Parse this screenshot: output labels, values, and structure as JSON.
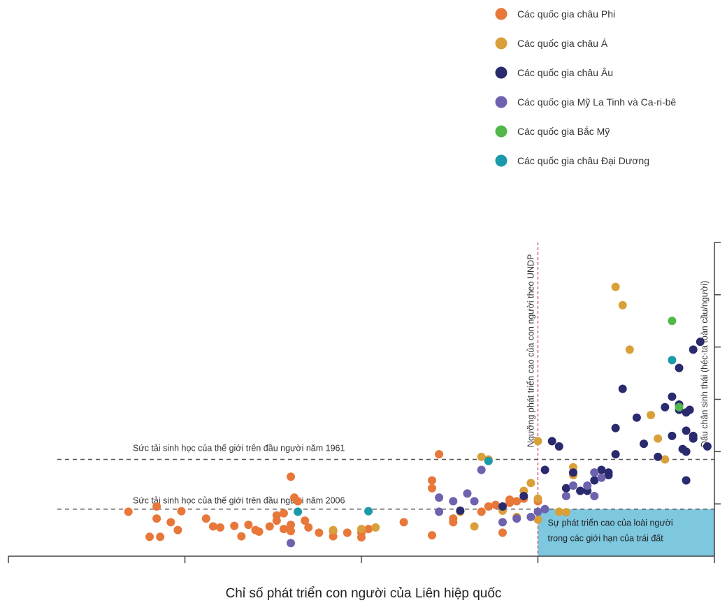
{
  "chart_data": {
    "type": "scatter",
    "title": "",
    "xlabel": "Chỉ số phát triển con người của Liên hiệp quốc",
    "ylabel": "Dấu chân sinh thái (héc-ta toàn cầu/người)",
    "xlim": [
      0,
      1
    ],
    "ylim": [
      0,
      6
    ],
    "legend_position": "top-right",
    "grid": false,
    "reference_lines": {
      "hdi_threshold": {
        "x": 0.75,
        "label": "Ngưỡng phát triển cao của con người theo UNDP"
      },
      "biocapacity_1961": {
        "y": 1.85,
        "label": "Sức tải sinh học của thế giới trên đầu người năm 1961"
      },
      "biocapacity_2006": {
        "y": 0.9,
        "label": "Sức tải sinh học của thế giới trên đầu người năm 2006"
      }
    },
    "sustainable_zone": {
      "x": [
        0.75,
        1.0
      ],
      "y": [
        0,
        0.9
      ],
      "label_line1": "Sự phát triển cao của loài người",
      "label_line2": "trong các giới hạn của trái đất"
    },
    "series": [
      {
        "name": "Các quốc gia châu Phi",
        "color": "#e8773a",
        "points": [
          [
            0.17,
            0.85
          ],
          [
            0.2,
            0.37
          ],
          [
            0.21,
            0.95
          ],
          [
            0.21,
            0.72
          ],
          [
            0.215,
            0.37
          ],
          [
            0.23,
            0.65
          ],
          [
            0.24,
            0.5
          ],
          [
            0.245,
            0.86
          ],
          [
            0.28,
            0.72
          ],
          [
            0.29,
            0.57
          ],
          [
            0.3,
            0.55
          ],
          [
            0.32,
            0.58
          ],
          [
            0.33,
            0.38
          ],
          [
            0.34,
            0.6
          ],
          [
            0.35,
            0.5
          ],
          [
            0.355,
            0.47
          ],
          [
            0.37,
            0.57
          ],
          [
            0.38,
            0.78
          ],
          [
            0.38,
            0.68
          ],
          [
            0.39,
            0.82
          ],
          [
            0.39,
            0.52
          ],
          [
            0.4,
            0.48
          ],
          [
            0.4,
            0.6
          ],
          [
            0.4,
            1.52
          ],
          [
            0.405,
            1.12
          ],
          [
            0.41,
            1.05
          ],
          [
            0.42,
            0.68
          ],
          [
            0.425,
            0.55
          ],
          [
            0.44,
            0.45
          ],
          [
            0.46,
            0.48
          ],
          [
            0.46,
            0.38
          ],
          [
            0.48,
            0.45
          ],
          [
            0.5,
            0.45
          ],
          [
            0.5,
            0.36
          ],
          [
            0.51,
            0.52
          ],
          [
            0.56,
            0.65
          ],
          [
            0.6,
            0.4
          ],
          [
            0.6,
            1.45
          ],
          [
            0.6,
            1.3
          ],
          [
            0.61,
            1.95
          ],
          [
            0.63,
            0.72
          ],
          [
            0.63,
            0.65
          ],
          [
            0.67,
            0.85
          ],
          [
            0.68,
            0.95
          ],
          [
            0.69,
            0.98
          ],
          [
            0.7,
            0.45
          ],
          [
            0.71,
            1.08
          ],
          [
            0.71,
            1.02
          ],
          [
            0.72,
            1.05
          ],
          [
            0.73,
            1.1
          ],
          [
            0.75,
            1.05
          ]
        ]
      },
      {
        "name": "Các quốc gia châu Á",
        "color": "#d9a03a",
        "points": [
          [
            0.46,
            0.5
          ],
          [
            0.5,
            0.52
          ],
          [
            0.52,
            0.55
          ],
          [
            0.64,
            0.85
          ],
          [
            0.66,
            0.57
          ],
          [
            0.67,
            1.9
          ],
          [
            0.68,
            1.85
          ],
          [
            0.7,
            0.87
          ],
          [
            0.72,
            0.75
          ],
          [
            0.73,
            1.25
          ],
          [
            0.74,
            1.4
          ],
          [
            0.75,
            1.1
          ],
          [
            0.75,
            2.2
          ],
          [
            0.75,
            0.7
          ],
          [
            0.78,
            0.85
          ],
          [
            0.79,
            0.84
          ],
          [
            0.8,
            1.55
          ],
          [
            0.8,
            1.7
          ],
          [
            0.86,
            5.15
          ],
          [
            0.87,
            4.8
          ],
          [
            0.88,
            3.95
          ],
          [
            0.91,
            2.7
          ],
          [
            0.92,
            2.25
          ],
          [
            0.93,
            1.85
          ],
          [
            0.96,
            2.0
          ]
        ]
      },
      {
        "name": "Các quốc gia châu Âu",
        "color": "#2a2a6e",
        "points": [
          [
            0.64,
            0.87
          ],
          [
            0.7,
            0.95
          ],
          [
            0.73,
            1.15
          ],
          [
            0.76,
            1.65
          ],
          [
            0.77,
            2.2
          ],
          [
            0.78,
            2.1
          ],
          [
            0.79,
            1.3
          ],
          [
            0.8,
            1.6
          ],
          [
            0.81,
            1.25
          ],
          [
            0.82,
            1.25
          ],
          [
            0.83,
            1.6
          ],
          [
            0.83,
            1.45
          ],
          [
            0.84,
            1.65
          ],
          [
            0.85,
            1.55
          ],
          [
            0.85,
            1.6
          ],
          [
            0.86,
            2.45
          ],
          [
            0.86,
            1.95
          ],
          [
            0.87,
            3.2
          ],
          [
            0.89,
            2.65
          ],
          [
            0.9,
            2.15
          ],
          [
            0.92,
            1.9
          ],
          [
            0.93,
            2.85
          ],
          [
            0.94,
            2.3
          ],
          [
            0.94,
            3.05
          ],
          [
            0.95,
            2.8
          ],
          [
            0.95,
            2.9
          ],
          [
            0.96,
            1.45
          ],
          [
            0.96,
            2.75
          ],
          [
            0.96,
            2.0
          ],
          [
            0.96,
            2.4
          ],
          [
            0.97,
            2.3
          ],
          [
            0.97,
            2.25
          ],
          [
            0.97,
            3.95
          ],
          [
            0.98,
            4.1
          ],
          [
            0.99,
            2.1
          ],
          [
            0.95,
            3.6
          ],
          [
            0.965,
            2.8
          ],
          [
            0.955,
            2.05
          ]
        ]
      },
      {
        "name": "Các quốc gia Mỹ La Tinh và Ca-ri-bê",
        "color": "#6d62ad",
        "points": [
          [
            0.4,
            0.25
          ],
          [
            0.61,
            0.85
          ],
          [
            0.61,
            1.12
          ],
          [
            0.63,
            1.05
          ],
          [
            0.65,
            1.2
          ],
          [
            0.66,
            1.05
          ],
          [
            0.67,
            1.65
          ],
          [
            0.7,
            0.65
          ],
          [
            0.72,
            0.72
          ],
          [
            0.74,
            0.75
          ],
          [
            0.75,
            0.85
          ],
          [
            0.76,
            0.9
          ],
          [
            0.79,
            1.15
          ],
          [
            0.8,
            1.35
          ],
          [
            0.82,
            1.35
          ],
          [
            0.83,
            1.6
          ],
          [
            0.83,
            1.15
          ],
          [
            0.84,
            1.5
          ]
        ]
      },
      {
        "name": "Các quốc gia Bắc Mỹ",
        "color": "#52b84a",
        "points": [
          [
            0.94,
            4.5
          ],
          [
            0.95,
            2.85
          ]
        ]
      },
      {
        "name": "Các quốc gia châu Đại Dương",
        "color": "#1a9aaa",
        "points": [
          [
            0.41,
            0.85
          ],
          [
            0.51,
            0.86
          ],
          [
            0.68,
            1.82
          ],
          [
            0.94,
            3.75
          ]
        ]
      }
    ]
  }
}
